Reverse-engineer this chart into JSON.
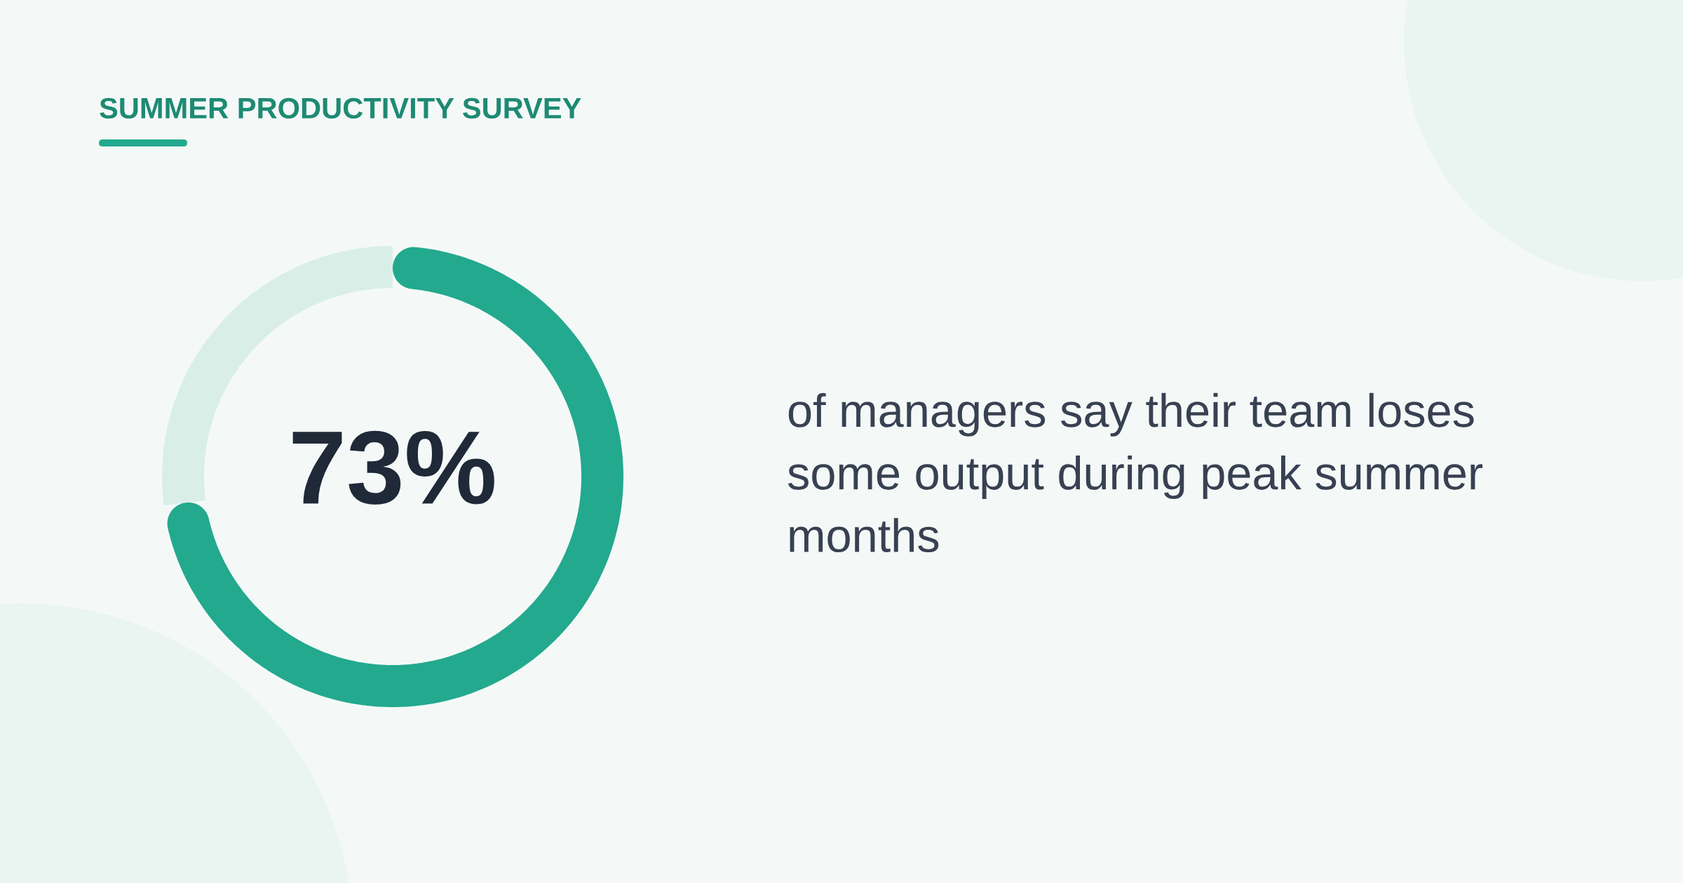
{
  "chart_data": {
    "type": "donut",
    "title": "SUMMER PRODUCTIVITY SURVEY",
    "categories": [
      null,
      null
    ],
    "values": [
      73,
      27
    ],
    "colors": [
      "#23a98e",
      "#daeee8"
    ],
    "value_labels": [
      "73%",
      null
    ],
    "annotations": [
      "of managers say their team loses some output during peak summer months"
    ]
  }
}
